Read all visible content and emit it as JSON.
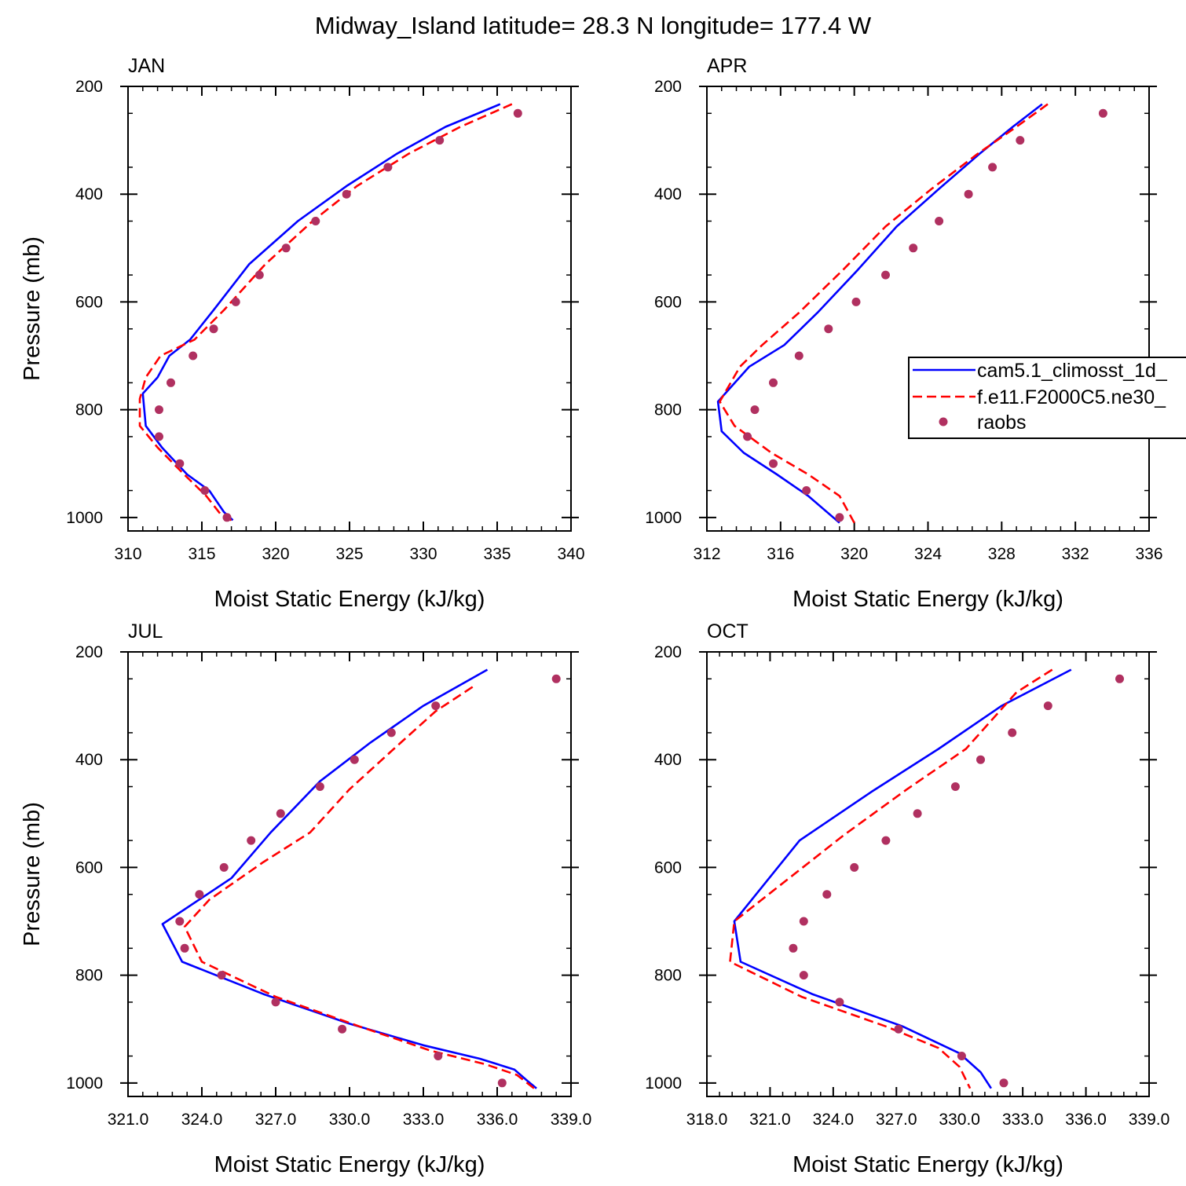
{
  "page_title": "Midway_Island  latitude= 28.3 N longitude= 177.4 W",
  "colors": {
    "model1": "#0000ff",
    "model2": "#ff0000",
    "obs": "#b03060"
  },
  "legend": {
    "model1_label": "cam5.1_climosst_1d_",
    "model2_label": "f.e11.F2000C5.ne30_",
    "obs_label": "raobs"
  },
  "chart_data": [
    {
      "type": "line",
      "panel": "JAN",
      "title": "JAN",
      "xlabel": "Moist Static Energy (kJ/kg)",
      "ylabel": "Pressure (mb)",
      "xlim": [
        310,
        340
      ],
      "x_ticks": [
        310,
        315,
        320,
        325,
        330,
        335,
        340
      ],
      "x_tick_labels": [
        "310",
        "315",
        "320",
        "325",
        "330",
        "335",
        "340"
      ],
      "ylim": [
        1025,
        200
      ],
      "y_ticks": [
        200,
        400,
        600,
        800,
        1000
      ],
      "y_tick_labels": [
        "200",
        "400",
        "600",
        "800",
        "1000"
      ],
      "series": [
        {
          "name": "cam5.1_climosst_1d_",
          "style": "solid",
          "x": [
            335.2,
            331.5,
            328.2,
            324.8,
            321.5,
            318.2,
            315.8,
            314.2,
            312.8,
            312.0,
            311.0,
            311.2,
            312.3,
            314.0,
            315.5,
            316.5,
            317.1
          ],
          "p": [
            233,
            275,
            325,
            385,
            450,
            530,
            615,
            670,
            700,
            740,
            770,
            830,
            870,
            920,
            950,
            990,
            1005
          ]
        },
        {
          "name": "f.e11.F2000C5.ne30_",
          "style": "dashed",
          "x": [
            336.0,
            332.5,
            329.0,
            325.5,
            322.5,
            319.3,
            316.5,
            314.5,
            312.2,
            311.2,
            310.8,
            310.8,
            312.0,
            313.8,
            315.3,
            316.3,
            317.0
          ],
          "p": [
            233,
            275,
            325,
            385,
            450,
            530,
            615,
            670,
            700,
            740,
            780,
            830,
            870,
            920,
            960,
            995,
            1005
          ]
        }
      ],
      "obs": {
        "x": [
          336.4,
          331.1,
          327.6,
          324.8,
          322.7,
          320.7,
          318.9,
          317.3,
          315.8,
          314.4,
          312.9,
          312.1,
          312.1,
          313.5,
          315.2,
          316.7
        ],
        "p": [
          250,
          300,
          350,
          400,
          450,
          500,
          550,
          600,
          650,
          700,
          750,
          800,
          850,
          900,
          950,
          1000
        ]
      }
    },
    {
      "type": "line",
      "panel": "APR",
      "title": "APR",
      "xlabel": "Moist Static Energy (kJ/kg)",
      "ylabel": "",
      "xlim": [
        312,
        336
      ],
      "x_ticks": [
        312,
        316,
        320,
        324,
        328,
        332,
        336
      ],
      "x_tick_labels": [
        "312",
        "316",
        "320",
        "324",
        "328",
        "332",
        "336"
      ],
      "ylim": [
        1025,
        200
      ],
      "y_ticks": [
        200,
        400,
        600,
        800,
        1000
      ],
      "y_tick_labels": [
        "200",
        "400",
        "600",
        "800",
        "1000"
      ],
      "series": [
        {
          "name": "cam5.1_climosst_1d_",
          "style": "solid",
          "x": [
            330.2,
            328.6,
            326.8,
            324.6,
            322.3,
            320.2,
            318.0,
            316.2,
            314.3,
            312.6,
            312.8,
            314.0,
            315.8,
            317.5,
            319.2
          ],
          "p": [
            233,
            275,
            325,
            390,
            460,
            540,
            620,
            680,
            720,
            785,
            840,
            880,
            920,
            960,
            1010
          ]
        },
        {
          "name": "f.e11.F2000C5.ne30_",
          "style": "dashed",
          "x": [
            330.5,
            328.8,
            326.7,
            324.2,
            321.7,
            319.4,
            317.0,
            315.0,
            313.8,
            312.7,
            313.5,
            315.5,
            317.5,
            319.2,
            320.0
          ],
          "p": [
            233,
            275,
            325,
            390,
            460,
            540,
            620,
            680,
            720,
            785,
            830,
            880,
            920,
            960,
            1010
          ]
        }
      ],
      "obs": {
        "x": [
          333.5,
          329.0,
          327.5,
          326.2,
          324.6,
          323.2,
          321.7,
          320.1,
          318.6,
          317.0,
          315.6,
          314.6,
          314.2,
          315.6,
          317.4,
          319.2
        ],
        "p": [
          250,
          300,
          350,
          400,
          450,
          500,
          550,
          600,
          650,
          700,
          750,
          800,
          850,
          900,
          950,
          1000
        ]
      }
    },
    {
      "type": "line",
      "panel": "JUL",
      "title": "JUL",
      "xlabel": "Moist Static Energy (kJ/kg)",
      "ylabel": "Pressure (mb)",
      "xlim": [
        321,
        339
      ],
      "x_ticks": [
        321,
        324,
        327,
        330,
        333,
        336,
        339
      ],
      "x_tick_labels": [
        "321.0",
        "324.0",
        "327.0",
        "330.0",
        "333.0",
        "336.0",
        "339.0"
      ],
      "ylim": [
        1025,
        200
      ],
      "y_ticks": [
        200,
        400,
        600,
        800,
        1000
      ],
      "y_tick_labels": [
        "200",
        "400",
        "600",
        "800",
        "1000"
      ],
      "series": [
        {
          "name": "cam5.1_climosst_1d_",
          "style": "solid",
          "x": [
            335.6,
            333.0,
            330.8,
            328.8,
            326.8,
            325.2,
            322.4,
            323.2,
            326.5,
            330.0,
            333.0,
            335.3,
            336.7,
            337.2,
            337.6
          ],
          "p": [
            233,
            300,
            370,
            440,
            535,
            620,
            705,
            775,
            835,
            890,
            930,
            955,
            975,
            995,
            1010
          ]
        },
        {
          "name": "f.e11.F2000C5.ne30_",
          "style": "dashed",
          "x": [
            335.0,
            333.5,
            331.8,
            330.0,
            328.4,
            326.5,
            324.3,
            323.3,
            324.0,
            327.0,
            330.4,
            333.3,
            335.5,
            336.8,
            337.5
          ],
          "p": [
            265,
            310,
            380,
            455,
            535,
            590,
            660,
            710,
            775,
            840,
            895,
            940,
            965,
            985,
            1010
          ]
        }
      ],
      "obs": {
        "x": [
          338.4,
          333.5,
          331.7,
          330.2,
          328.8,
          327.2,
          326.0,
          324.9,
          323.9,
          323.1,
          323.3,
          324.8,
          327.0,
          329.7,
          333.6,
          336.2
        ],
        "p": [
          250,
          300,
          350,
          400,
          450,
          500,
          550,
          600,
          650,
          700,
          750,
          800,
          850,
          900,
          950,
          1000
        ]
      }
    },
    {
      "type": "line",
      "panel": "OCT",
      "title": "OCT",
      "xlabel": "Moist Static Energy (kJ/kg)",
      "ylabel": "",
      "xlim": [
        318,
        339
      ],
      "x_ticks": [
        318,
        321,
        324,
        327,
        330,
        333,
        336,
        339
      ],
      "x_tick_labels": [
        "318.0",
        "321.0",
        "324.0",
        "327.0",
        "330.0",
        "333.0",
        "336.0",
        "339.0"
      ],
      "ylim": [
        1025,
        200
      ],
      "y_ticks": [
        200,
        400,
        600,
        800,
        1000
      ],
      "y_tick_labels": [
        "200",
        "400",
        "600",
        "800",
        "1000"
      ],
      "series": [
        {
          "name": "cam5.1_climosst_1d_",
          "style": "solid",
          "x": [
            335.3,
            332.0,
            329.0,
            325.8,
            322.4,
            319.3,
            319.6,
            323.0,
            327.3,
            330.0,
            331.0,
            331.5
          ],
          "p": [
            233,
            300,
            380,
            460,
            550,
            700,
            775,
            835,
            895,
            945,
            980,
            1010
          ]
        },
        {
          "name": "f.e11.F2000C5.ne30_",
          "style": "dashed",
          "x": [
            334.4,
            332.7,
            330.3,
            327.5,
            324.5,
            319.3,
            319.1,
            322.5,
            326.5,
            329.0,
            330.0,
            330.5
          ],
          "p": [
            233,
            275,
            380,
            455,
            540,
            700,
            775,
            840,
            895,
            935,
            970,
            1010
          ]
        }
      ],
      "obs": {
        "x": [
          337.6,
          334.2,
          332.5,
          331.0,
          329.8,
          328.0,
          326.5,
          325.0,
          323.7,
          322.6,
          322.1,
          322.6,
          324.3,
          327.1,
          330.1,
          332.1
        ],
        "p": [
          250,
          300,
          350,
          400,
          450,
          500,
          550,
          600,
          650,
          700,
          750,
          800,
          850,
          900,
          950,
          1000
        ]
      }
    }
  ]
}
